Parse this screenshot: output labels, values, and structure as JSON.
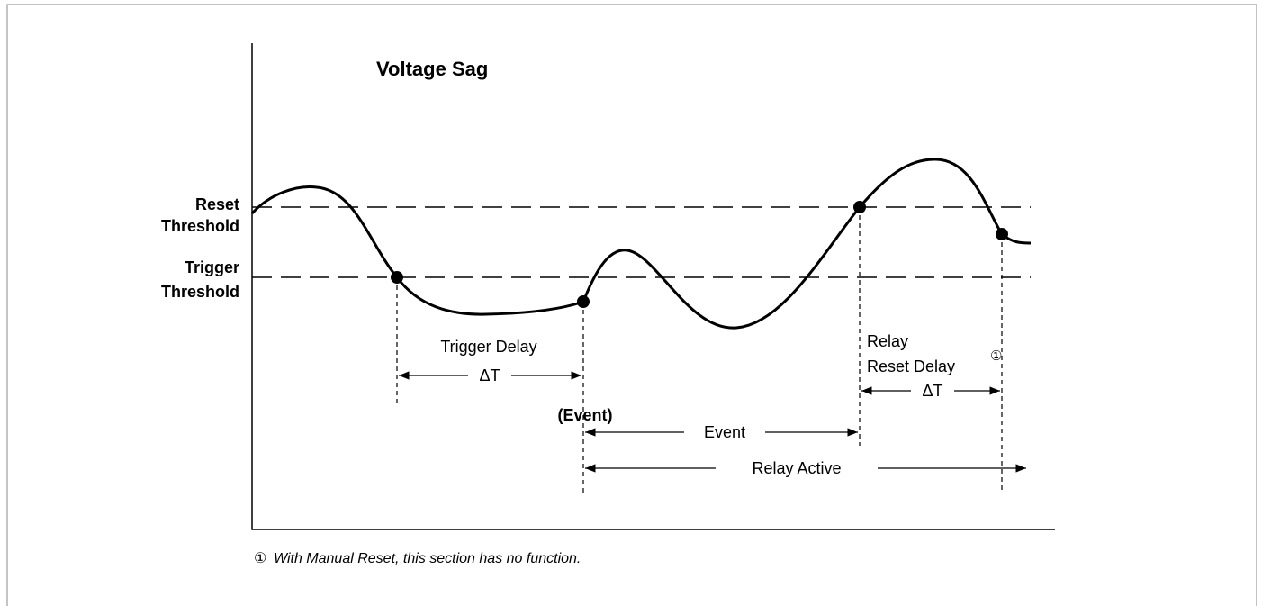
{
  "title": "Voltage Sag",
  "levels": [
    {
      "line1": "Reset",
      "line2": "Threshold"
    },
    {
      "line1": "Trigger",
      "line2": "Threshold"
    }
  ],
  "intervals": {
    "trigger_delay": "Trigger Delay",
    "trigger_delta": "ΔT",
    "event_marker": "(Event)",
    "event": "Event",
    "relay_active": "Relay Active",
    "relay_line1": "Relay",
    "relay_line2": "Reset Delay",
    "relay_note_ref": "①",
    "relay_delta": "ΔT"
  },
  "footnote": {
    "marker": "①",
    "text": "With Manual Reset, this section has no function."
  }
}
